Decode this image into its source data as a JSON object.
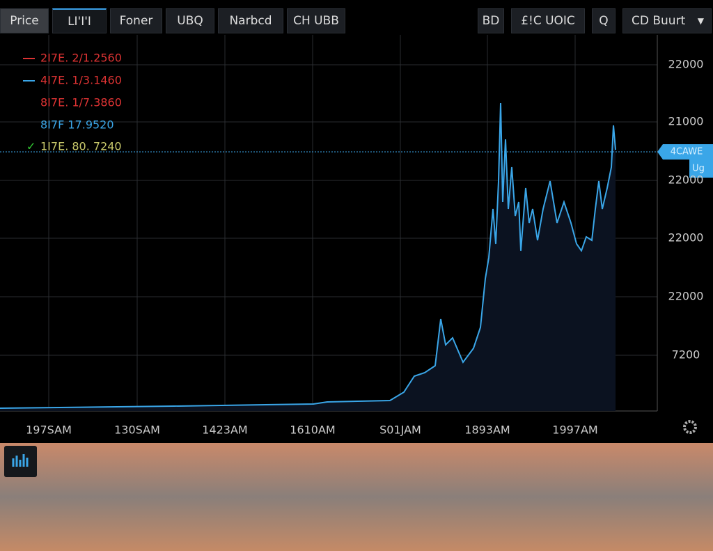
{
  "toolbar": {
    "tabs": [
      "Price",
      "LI'I'I",
      "Foner",
      "UBQ",
      "Narbcd",
      "CH UBB"
    ],
    "controls": [
      "BD",
      "£!C UOIC",
      "Q",
      "CD Buurt"
    ]
  },
  "legend": [
    "2I7E. 2/1.2560",
    "4I7E. 1/3.1460",
    "8I7E. 1/7.3860",
    "8I7F 17.9520",
    "1I7E. 80. 7240"
  ],
  "y_axis_labels": [
    "22000",
    "21000",
    "22000",
    "22000",
    "22000",
    "7200"
  ],
  "x_axis_labels": [
    "197SAM",
    "130SAM",
    "1423AM",
    "1610AM",
    "S01JAM",
    "1893AM",
    "1997AM"
  ],
  "price_tag": [
    "4CAWE",
    "Ug"
  ]
}
